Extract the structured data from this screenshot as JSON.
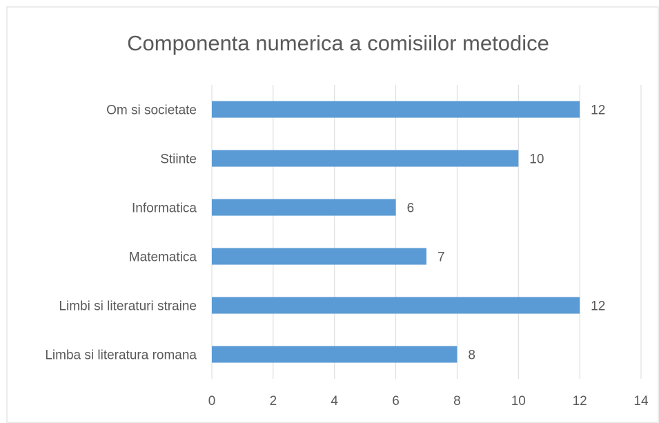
{
  "chart_data": {
    "type": "bar",
    "orientation": "horizontal",
    "title": "Componenta numerica a comisiilor metodice",
    "categories": [
      "Limba si literatura romana",
      "Limbi si literaturi straine",
      "Matematica",
      "Informatica",
      "Stiinte",
      "Om si societate"
    ],
    "values": [
      8,
      12,
      7,
      6,
      10,
      12
    ],
    "color": "#5b9bd5",
    "xlim": [
      0,
      14
    ],
    "xticks": [
      0,
      2,
      4,
      6,
      8,
      10,
      12,
      14
    ],
    "grid": true
  }
}
